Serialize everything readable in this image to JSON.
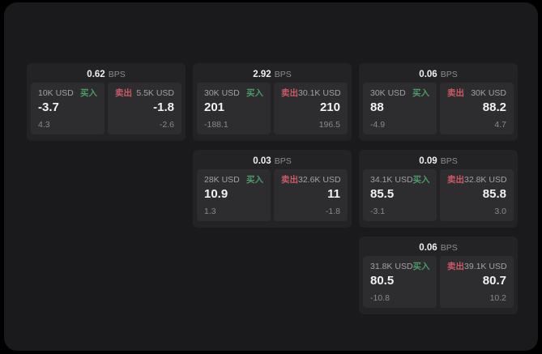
{
  "labels": {
    "bps_unit": "BPS",
    "buy": "买入",
    "sell": "卖出"
  },
  "colors": {
    "buy": "#4c9a68",
    "sell": "#cb5a66",
    "window_bg": "#1a1a1c",
    "card_bg": "#232325",
    "panel_bg": "#2d2d2f"
  },
  "cards": [
    {
      "bps_value": "0.62",
      "slot": {
        "row": 0,
        "col": 0
      },
      "buy": {
        "amount": "10K USD",
        "price": "-3.7",
        "sub_value": "4.3"
      },
      "sell": {
        "amount": "5.5K USD",
        "price": "-1.8",
        "sub_value": "-2.6"
      }
    },
    {
      "bps_value": "2.92",
      "slot": {
        "row": 0,
        "col": 1
      },
      "buy": {
        "amount": "30K USD",
        "price": "201",
        "sub_value": "-188.1"
      },
      "sell": {
        "amount": "30.1K USD",
        "price": "210",
        "sub_value": "196.5"
      }
    },
    {
      "bps_value": "0.06",
      "slot": {
        "row": 0,
        "col": 2
      },
      "buy": {
        "amount": "30K USD",
        "price": "88",
        "sub_value": "-4.9"
      },
      "sell": {
        "amount": "30K USD",
        "price": "88.2",
        "sub_value": "4.7"
      }
    },
    {
      "bps_value": "0.03",
      "slot": {
        "row": 1,
        "col": 1
      },
      "buy": {
        "amount": "28K USD",
        "price": "10.9",
        "sub_value": "1.3"
      },
      "sell": {
        "amount": "32.6K USD",
        "price": "11",
        "sub_value": "-1.8"
      }
    },
    {
      "bps_value": "0.09",
      "slot": {
        "row": 1,
        "col": 2
      },
      "buy": {
        "amount": "34.1K USD",
        "price": "85.5",
        "sub_value": "-3.1"
      },
      "sell": {
        "amount": "32.8K USD",
        "price": "85.8",
        "sub_value": "3.0"
      }
    },
    {
      "bps_value": "0.06",
      "slot": {
        "row": 2,
        "col": 2
      },
      "buy": {
        "amount": "31.8K USD",
        "price": "80.5",
        "sub_value": "-10.8"
      },
      "sell": {
        "amount": "39.1K USD",
        "price": "80.7",
        "sub_value": "10.2"
      }
    }
  ]
}
